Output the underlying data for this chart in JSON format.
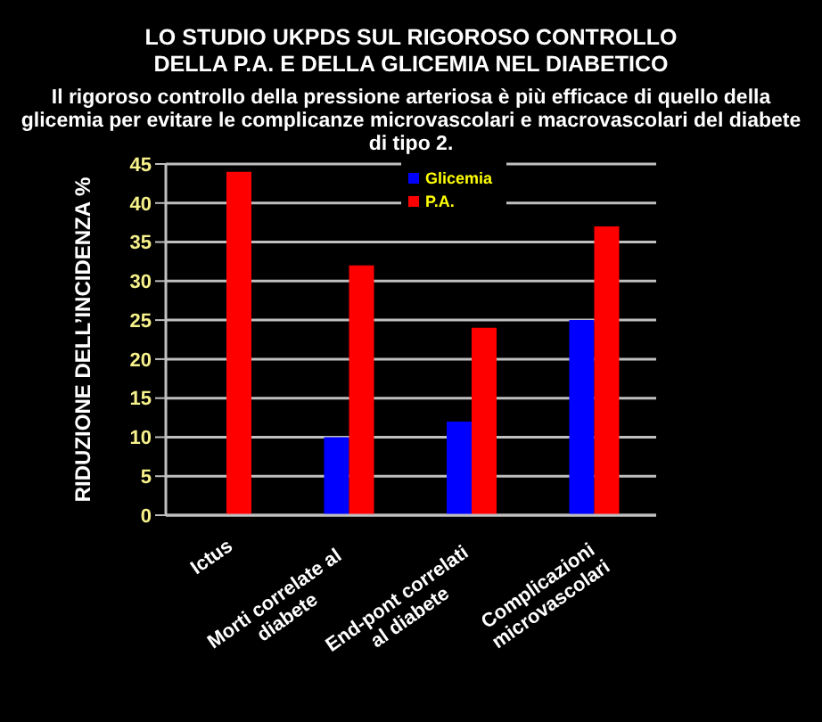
{
  "chart_data": {
    "type": "bar",
    "title": "LO STUDIO UKPDS SUL RIGOROSO CONTROLLO DELLA P.A. E DELLA GLICEMIA NEL DIABETICO",
    "subtitle": "Il rigoroso controllo della pressione arteriosa è più efficace di quello della glicemia per evitare le complicanze microvascolari e macrovascolari del diabete di tipo 2.",
    "ylabel": "RIDUZIONE DELL’INCIDENZA %",
    "categories": [
      "Ictus",
      "Morti correlate al diabete",
      "End-pont correlati al diabete",
      "Complicazioni microvascolari"
    ],
    "series": [
      {
        "name": "Glicemia",
        "color": "#0000ff",
        "values": [
          null,
          10,
          12,
          25
        ]
      },
      {
        "name": "P.A.",
        "color": "#ff0000",
        "values": [
          44,
          32,
          24,
          37
        ]
      }
    ],
    "ylim": [
      0,
      45
    ],
    "yticks": [
      0,
      5,
      10,
      15,
      20,
      25,
      30,
      35,
      40,
      45
    ],
    "grid": "y",
    "legend": "top"
  }
}
